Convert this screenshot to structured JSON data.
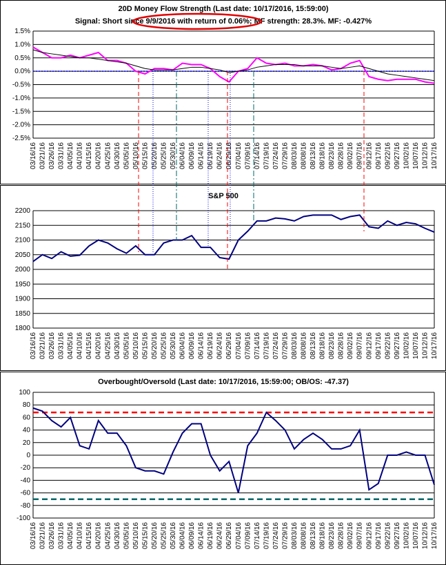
{
  "chart_data": [
    {
      "type": "line",
      "title": "20D Money Flow Strength (Last date: 10/17/2016, 15:59:00)",
      "subtitle": "Signal: Short since 9/9/2016 with return of 0.06%; MF strength: 28.3%. MF: -0.427%",
      "categories": [
        "03/16/16",
        "03/21/16",
        "03/26/16",
        "03/31/16",
        "04/05/16",
        "04/10/16",
        "04/15/16",
        "04/20/16",
        "04/25/16",
        "04/30/16",
        "05/05/16",
        "05/10/16",
        "05/15/16",
        "05/20/16",
        "05/25/16",
        "05/30/16",
        "06/04/16",
        "06/09/16",
        "06/14/16",
        "06/19/16",
        "06/24/16",
        "06/29/16",
        "07/04/16",
        "07/09/16",
        "07/14/16",
        "07/19/16",
        "07/24/16",
        "07/29/16",
        "08/03/16",
        "08/08/16",
        "08/13/16",
        "08/18/16",
        "08/23/16",
        "08/28/16",
        "09/02/16",
        "09/07/16",
        "09/12/16",
        "09/17/16",
        "09/22/16",
        "09/27/16",
        "10/02/16",
        "10/07/16",
        "10/12/16",
        "10/17/16"
      ],
      "series": [
        {
          "color": "#ff00ff",
          "values": [
            0.9,
            0.7,
            0.5,
            0.5,
            0.6,
            0.5,
            0.6,
            0.7,
            0.4,
            0.4,
            0.3,
            0.0,
            -0.1,
            0.1,
            0.1,
            0.05,
            0.3,
            0.25,
            0.25,
            0.1,
            -0.2,
            -0.4,
            0.0,
            0.1,
            0.5,
            0.3,
            0.25,
            0.3,
            0.2,
            0.2,
            0.25,
            0.2,
            0.05,
            0.1,
            0.3,
            0.4,
            -0.2,
            -0.3,
            -0.35,
            -0.3,
            -0.3,
            -0.3,
            -0.4,
            -0.45
          ]
        },
        {
          "color": "#000000",
          "values": [
            0.8,
            0.7,
            0.65,
            0.6,
            0.55,
            0.5,
            0.5,
            0.45,
            0.4,
            0.35,
            0.3,
            0.2,
            0.1,
            0.05,
            0.05,
            0.05,
            0.1,
            0.15,
            0.15,
            0.1,
            0.05,
            -0.05,
            0.0,
            0.05,
            0.15,
            0.2,
            0.25,
            0.25,
            0.25,
            0.2,
            0.2,
            0.2,
            0.15,
            0.1,
            0.15,
            0.2,
            0.1,
            0.0,
            -0.1,
            -0.15,
            -0.2,
            -0.25,
            -0.3,
            -0.35
          ]
        }
      ],
      "reference_lines": [
        {
          "value": 0,
          "color": "#0000ff",
          "dash": "dotted"
        }
      ],
      "ylim": [
        -2.5,
        1.5
      ],
      "yticks": [
        {
          "value": 1.5,
          "label": "1.5%"
        },
        {
          "value": 1.0,
          "label": "1.0%"
        },
        {
          "value": 0.5,
          "label": "0.5%"
        },
        {
          "value": 0,
          "label": "0.0%"
        },
        {
          "value": -0.5,
          "label": "-0.5%"
        },
        {
          "value": -1.0,
          "label": "-1.0%"
        },
        {
          "value": -1.5,
          "label": "-1.5%"
        },
        {
          "value": -2.0,
          "label": "-2.0%"
        },
        {
          "value": -2.5,
          "label": "-2.5%"
        }
      ],
      "grid": true
    },
    {
      "type": "line",
      "title": "S&P 500",
      "categories": [
        "03/16/16",
        "03/21/16",
        "03/26/16",
        "03/31/16",
        "04/05/16",
        "04/10/16",
        "04/15/16",
        "04/20/16",
        "04/25/16",
        "04/30/16",
        "05/05/16",
        "05/10/16",
        "05/15/16",
        "05/20/16",
        "05/25/16",
        "05/30/16",
        "06/04/16",
        "06/09/16",
        "06/14/16",
        "06/19/16",
        "06/24/16",
        "06/29/16",
        "07/04/16",
        "07/09/16",
        "07/14/16",
        "07/19/16",
        "07/24/16",
        "07/29/16",
        "08/03/16",
        "08/08/16",
        "08/13/16",
        "08/18/16",
        "08/23/16",
        "08/28/16",
        "09/02/16",
        "09/07/16",
        "09/12/16",
        "09/17/16",
        "09/22/16",
        "09/27/16",
        "10/02/16",
        "10/07/16",
        "10/12/16",
        "10/17/16"
      ],
      "series": [
        {
          "color": "#000080",
          "values": [
            2027,
            2050,
            2037,
            2060,
            2045,
            2048,
            2080,
            2100,
            2090,
            2070,
            2055,
            2080,
            2050,
            2050,
            2090,
            2100,
            2100,
            2115,
            2075,
            2075,
            2040,
            2035,
            2100,
            2130,
            2165,
            2165,
            2175,
            2172,
            2165,
            2180,
            2185,
            2185,
            2185,
            2170,
            2180,
            2185,
            2145,
            2140,
            2165,
            2150,
            2160,
            2155,
            2140,
            2127
          ]
        }
      ],
      "ylim": [
        1800,
        2200
      ],
      "yticks": [
        2200,
        2150,
        2100,
        2050,
        2000,
        1950,
        1900,
        1850,
        1800
      ],
      "grid": true
    },
    {
      "type": "line",
      "title": "Overbought/Oversold (Last date: 10/17/2016, 15:59:00; OB/OS: -47.37)",
      "categories": [
        "03/16/16",
        "03/21/16",
        "03/26/16",
        "03/31/16",
        "04/05/16",
        "04/10/16",
        "04/15/16",
        "04/20/16",
        "04/25/16",
        "04/30/16",
        "05/05/16",
        "05/10/16",
        "05/15/16",
        "05/20/16",
        "05/25/16",
        "05/30/16",
        "06/04/16",
        "06/09/16",
        "06/14/16",
        "06/19/16",
        "06/24/16",
        "06/29/16",
        "07/04/16",
        "07/09/16",
        "07/14/16",
        "07/19/16",
        "07/24/16",
        "07/29/16",
        "08/03/16",
        "08/08/16",
        "08/13/16",
        "08/18/16",
        "08/23/16",
        "08/28/16",
        "09/02/16",
        "09/07/16",
        "09/12/16",
        "09/17/16",
        "09/22/16",
        "09/27/16",
        "10/02/16",
        "10/07/16",
        "10/12/16",
        "10/17/16"
      ],
      "series": [
        {
          "color": "#000080",
          "values": [
            75,
            70,
            55,
            45,
            60,
            15,
            10,
            55,
            35,
            35,
            15,
            -20,
            -25,
            -25,
            -30,
            5,
            35,
            50,
            50,
            0,
            -25,
            -10,
            -60,
            15,
            35,
            68,
            55,
            40,
            10,
            25,
            35,
            25,
            10,
            10,
            15,
            40,
            -55,
            -45,
            0,
            0,
            5,
            0,
            0,
            -47
          ]
        }
      ],
      "reference_lines": [
        {
          "value": 68,
          "color": "#ff0000",
          "dash": "dashed"
        },
        {
          "value": -70,
          "color": "#006666",
          "dash": "dashed"
        }
      ],
      "ylim": [
        -100,
        100
      ],
      "yticks": [
        100,
        80,
        60,
        40,
        20,
        0,
        -20,
        -40,
        -60,
        -80,
        -100
      ],
      "grid": true
    }
  ]
}
